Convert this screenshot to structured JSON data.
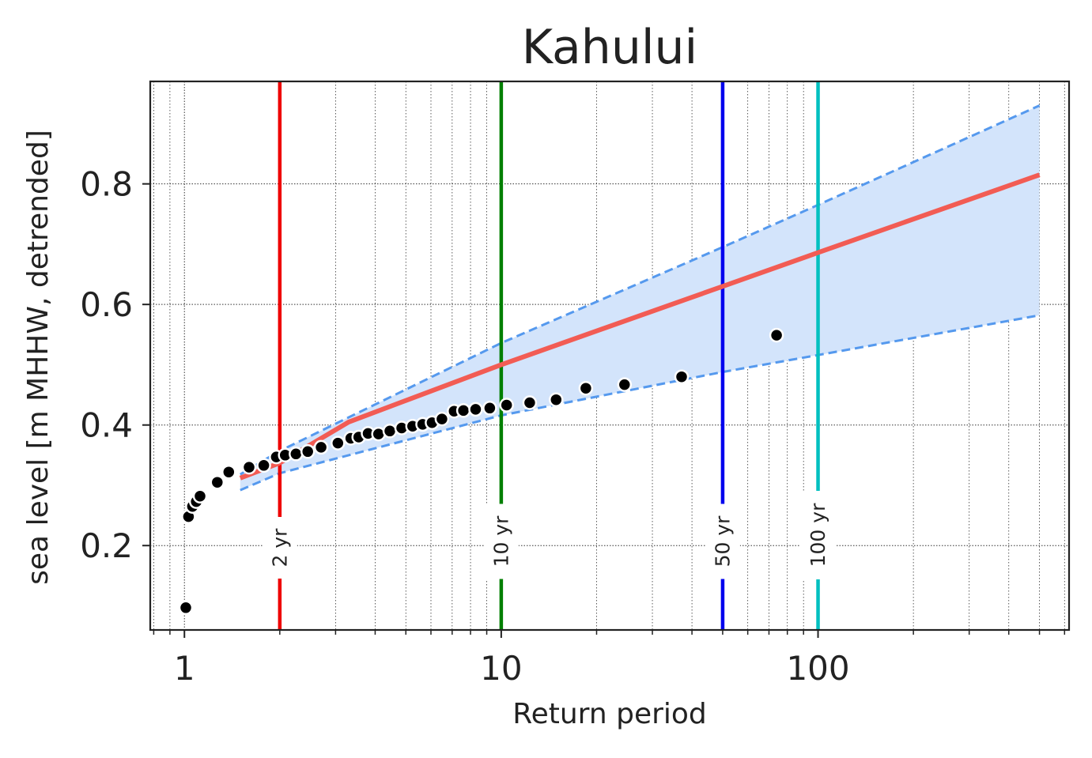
{
  "chart_data": {
    "type": "scatter",
    "title": "Kahului",
    "xlabel": "Return period",
    "ylabel": "sea level [m MHHW, detrended]",
    "x_scale": "log",
    "xlim": [
      0.78,
      620
    ],
    "ylim": [
      0.06,
      0.97
    ],
    "x_ticks": [
      {
        "value": 1,
        "label": "1"
      },
      {
        "value": 10,
        "label": "10"
      },
      {
        "value": 100,
        "label": "100"
      }
    ],
    "y_ticks": [
      {
        "value": 0.2,
        "label": "0.2"
      },
      {
        "value": 0.4,
        "label": "0.4"
      },
      {
        "value": 0.6,
        "label": "0.6"
      },
      {
        "value": 0.8,
        "label": "0.8"
      }
    ],
    "grid": true,
    "fit_line": {
      "color": "#f25c54",
      "points": [
        [
          1.5,
          0.312
        ],
        [
          2,
          0.337
        ],
        [
          3.3,
          0.405
        ],
        [
          10,
          0.5
        ],
        [
          50,
          0.63
        ],
        [
          100,
          0.686
        ],
        [
          500,
          0.815
        ]
      ]
    },
    "confidence_band": {
      "fill": "#d3e4fb",
      "line_color": "#5599ee",
      "upper": [
        [
          1.5,
          0.318
        ],
        [
          2,
          0.357
        ],
        [
          10,
          0.536
        ],
        [
          50,
          0.695
        ],
        [
          100,
          0.765
        ],
        [
          500,
          0.93
        ]
      ],
      "lower": [
        [
          1.5,
          0.292
        ],
        [
          2,
          0.32
        ],
        [
          10,
          0.416
        ],
        [
          50,
          0.488
        ],
        [
          100,
          0.516
        ],
        [
          500,
          0.582
        ]
      ]
    },
    "observations": [
      [
        1.01,
        0.097
      ],
      [
        1.03,
        0.248
      ],
      [
        1.06,
        0.265
      ],
      [
        1.09,
        0.273
      ],
      [
        1.12,
        0.282
      ],
      [
        1.27,
        0.305
      ],
      [
        1.38,
        0.322
      ],
      [
        1.6,
        0.33
      ],
      [
        1.78,
        0.333
      ],
      [
        1.95,
        0.347
      ],
      [
        2.08,
        0.35
      ],
      [
        2.25,
        0.352
      ],
      [
        2.45,
        0.356
      ],
      [
        2.7,
        0.363
      ],
      [
        3.05,
        0.37
      ],
      [
        3.35,
        0.378
      ],
      [
        3.55,
        0.38
      ],
      [
        3.8,
        0.386
      ],
      [
        4.1,
        0.385
      ],
      [
        4.45,
        0.39
      ],
      [
        4.85,
        0.395
      ],
      [
        5.25,
        0.398
      ],
      [
        5.65,
        0.401
      ],
      [
        6.05,
        0.404
      ],
      [
        6.5,
        0.41
      ],
      [
        7.1,
        0.423
      ],
      [
        7.6,
        0.424
      ],
      [
        8.3,
        0.426
      ],
      [
        9.2,
        0.428
      ],
      [
        10.4,
        0.433
      ],
      [
        12.3,
        0.437
      ],
      [
        14.9,
        0.442
      ],
      [
        18.5,
        0.461
      ],
      [
        24.5,
        0.467
      ],
      [
        37.1,
        0.48
      ],
      [
        74,
        0.549
      ]
    ],
    "return_period_lines": [
      {
        "value": 2,
        "label": "2 yr",
        "color": "#ee0000"
      },
      {
        "value": 10,
        "label": "10 yr",
        "color": "#007f00"
      },
      {
        "value": 50,
        "label": "50 yr",
        "color": "#0000ee"
      },
      {
        "value": 100,
        "label": "100 yr",
        "color": "#00c0c0"
      }
    ]
  }
}
